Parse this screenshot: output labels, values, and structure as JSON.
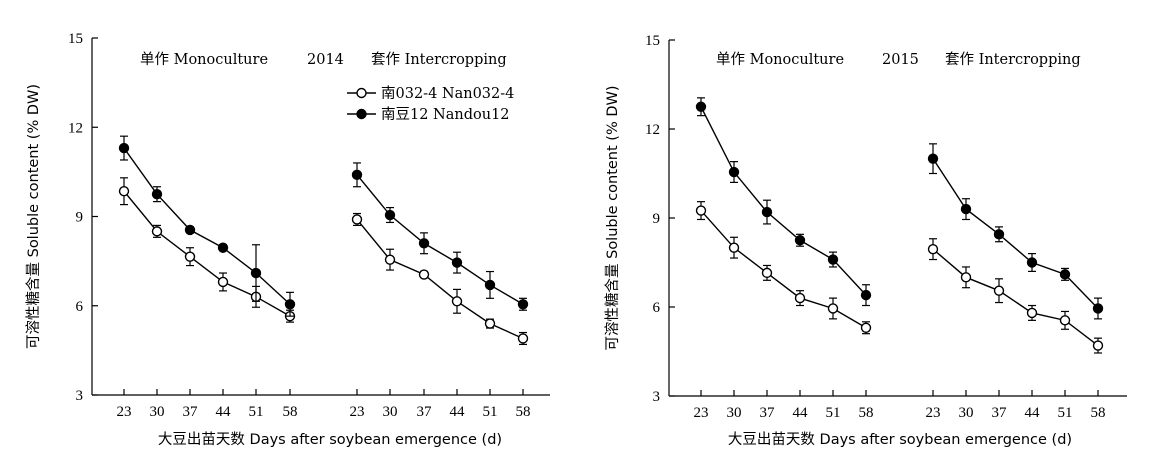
{
  "chart_data": [
    {
      "type": "line",
      "year": "2014",
      "title_mono": "单作 Monoculture",
      "title_inter": "套作 Intercropping",
      "xlabel": "大豆出苗天数 Days after soybean emergence (d)",
      "ylabel": "可溶性糖含量 Soluble content (% DW)",
      "ylim": [
        3,
        15
      ],
      "yticks": [
        3,
        6,
        9,
        12,
        15
      ],
      "x": [
        23,
        30,
        37,
        44,
        51,
        58
      ],
      "groups": [
        "Monoculture",
        "Intercropping"
      ],
      "legend_position": "top",
      "series": [
        {
          "name": "南032-4 Nan032-4",
          "marker": "open-circle",
          "mono": [
            9.85,
            8.5,
            7.65,
            6.8,
            6.3,
            5.65
          ],
          "mono_err": [
            0.45,
            0.2,
            0.3,
            0.3,
            0.35,
            0.2
          ],
          "inter": [
            8.9,
            7.55,
            7.05,
            6.15,
            5.4,
            4.9
          ],
          "inter_err": [
            0.2,
            0.35,
            0.1,
            0.4,
            0.15,
            0.2
          ]
        },
        {
          "name": "南豆12 Nandou12",
          "marker": "filled-circle",
          "mono": [
            11.3,
            9.75,
            8.55,
            7.95,
            7.1,
            6.05
          ],
          "mono_err": [
            0.4,
            0.25,
            0.1,
            0.1,
            0.95,
            0.4
          ],
          "inter": [
            10.4,
            9.05,
            8.1,
            7.45,
            6.7,
            6.05
          ],
          "inter_err": [
            0.4,
            0.25,
            0.35,
            0.35,
            0.45,
            0.2
          ]
        }
      ]
    },
    {
      "type": "line",
      "year": "2015",
      "title_mono": "单作 Monoculture",
      "title_inter": "套作 Intercropping",
      "xlabel": "大豆出苗天数 Days after soybean emergence (d)",
      "ylabel": "可溶性糖含量 Soluble content (% DW)",
      "ylim": [
        3,
        15
      ],
      "yticks": [
        3,
        6,
        9,
        12,
        15
      ],
      "x": [
        23,
        30,
        37,
        44,
        51,
        58
      ],
      "groups": [
        "Monoculture",
        "Intercropping"
      ],
      "series": [
        {
          "name": "南032-4 Nan032-4",
          "marker": "open-circle",
          "mono": [
            9.25,
            8.0,
            7.15,
            6.3,
            5.95,
            5.3
          ],
          "mono_err": [
            0.3,
            0.35,
            0.25,
            0.25,
            0.35,
            0.2
          ],
          "inter": [
            7.95,
            7.0,
            6.55,
            5.8,
            5.55,
            4.7
          ],
          "inter_err": [
            0.35,
            0.35,
            0.4,
            0.25,
            0.3,
            0.25
          ]
        },
        {
          "name": "南豆12 Nandou12",
          "marker": "filled-circle",
          "mono": [
            12.75,
            10.55,
            9.2,
            8.25,
            7.6,
            6.4
          ],
          "mono_err": [
            0.3,
            0.35,
            0.4,
            0.2,
            0.25,
            0.35
          ],
          "inter": [
            11.0,
            9.3,
            8.45,
            7.5,
            7.1,
            5.95
          ],
          "inter_err": [
            0.5,
            0.35,
            0.25,
            0.3,
            0.2,
            0.35
          ]
        }
      ]
    }
  ]
}
